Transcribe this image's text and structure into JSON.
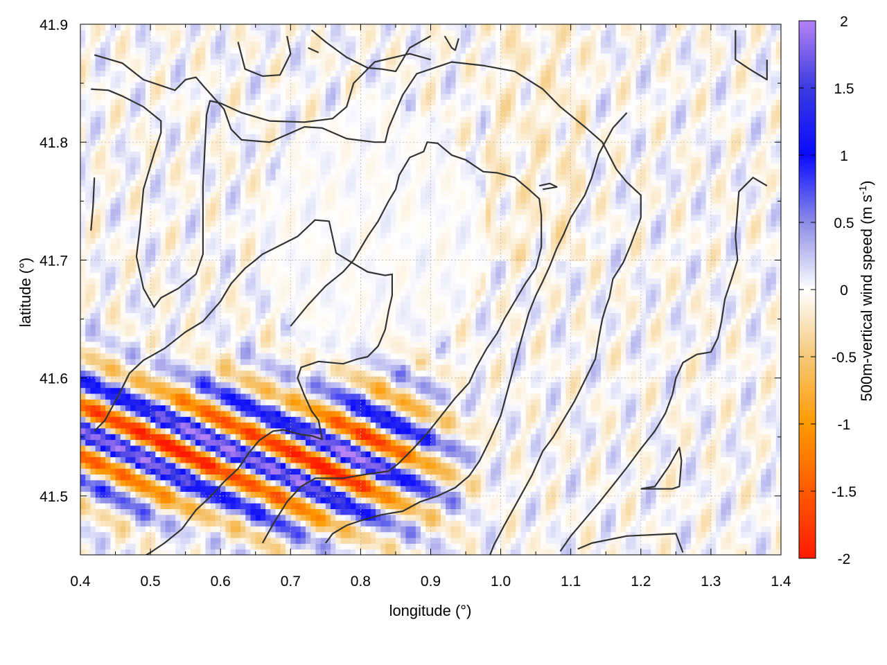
{
  "chart_data": {
    "type": "heatmap",
    "xlabel": "longitude (°)",
    "ylabel": "latitude (°)",
    "colorbar_label": "500m-vertical wind speed (m s",
    "colorbar_label_sup": "-1",
    "colorbar_label_end": ")",
    "xlim": [
      0.4,
      1.4
    ],
    "ylim": [
      41.45,
      41.9
    ],
    "clim": [
      -2,
      2
    ],
    "x_ticks": [
      0.4,
      0.5,
      0.6,
      0.7,
      0.8,
      0.9,
      1.0,
      1.1,
      1.2,
      1.3,
      1.4
    ],
    "x_tick_labels": [
      "0.4",
      "0.5",
      "0.6",
      "0.7",
      "0.8",
      "0.9",
      "1.0",
      "1.1",
      "1.2",
      "1.3",
      "1.4"
    ],
    "y_ticks": [
      41.5,
      41.6,
      41.7,
      41.8,
      41.9
    ],
    "y_tick_labels": [
      "41.5",
      "41.6",
      "41.7",
      "41.8",
      "41.9"
    ],
    "colorbar_ticks": [
      2,
      1.5,
      1,
      0.5,
      0,
      -0.5,
      -1,
      -1.5,
      -2
    ],
    "colorbar_tick_labels": [
      "2",
      "1.5",
      "1",
      "0.5",
      "0",
      "-0.5",
      "-1",
      "-1.5",
      "-2"
    ],
    "grid": true,
    "colormap": [
      {
        "value": -2,
        "color": "#ff1a00"
      },
      {
        "value": -1.5,
        "color": "#ff5a00"
      },
      {
        "value": -1,
        "color": "#ff9a00"
      },
      {
        "value": -0.5,
        "color": "#f5c878"
      },
      {
        "value": 0,
        "color": "#ffffff"
      },
      {
        "value": 0.5,
        "color": "#8c8ce6"
      },
      {
        "value": 1,
        "color": "#0a0aff"
      },
      {
        "value": 1.5,
        "color": "#3a3ae0"
      },
      {
        "value": 2,
        "color": "#b482f5"
      }
    ],
    "wave_band": {
      "description": "strong alternating updraft/downdraft wave train",
      "amplitude": 2.0
    },
    "contours": [
      {
        "name": "contour-a",
        "points": [
          [
            0.42,
            41.874
          ],
          [
            0.46,
            41.867
          ],
          [
            0.49,
            41.853
          ],
          [
            0.535,
            41.844
          ],
          [
            0.55,
            41.853
          ],
          [
            0.565,
            41.855
          ],
          [
            0.575,
            41.848
          ],
          [
            0.59,
            41.838
          ],
          [
            0.605,
            41.828
          ],
          [
            0.615,
            41.811
          ],
          [
            0.63,
            41.802
          ],
          [
            0.67,
            41.8
          ],
          [
            0.72,
            41.813
          ],
          [
            0.745,
            41.812
          ],
          [
            0.78,
            41.803
          ],
          [
            0.82,
            41.8
          ],
          [
            0.835,
            41.8
          ],
          [
            0.84,
            41.812
          ],
          [
            0.86,
            41.84
          ],
          [
            0.88,
            41.858
          ],
          [
            0.93,
            41.868
          ],
          [
            0.975,
            41.865
          ],
          [
            1.02,
            41.86
          ],
          [
            1.06,
            41.845
          ],
          [
            1.085,
            41.83
          ],
          [
            1.12,
            41.813
          ],
          [
            1.145,
            41.8
          ],
          [
            1.165,
            41.777
          ],
          [
            1.18,
            41.766
          ],
          [
            1.2,
            41.755
          ],
          [
            1.2,
            41.736
          ],
          [
            1.185,
            41.712
          ],
          [
            1.175,
            41.698
          ],
          [
            1.16,
            41.684
          ],
          [
            1.155,
            41.668
          ],
          [
            1.15,
            41.66
          ],
          [
            1.145,
            41.65
          ],
          [
            1.14,
            41.634
          ],
          [
            1.135,
            41.616
          ],
          [
            1.12,
            41.598
          ],
          [
            1.105,
            41.58
          ],
          [
            1.09,
            41.565
          ],
          [
            1.075,
            41.55
          ],
          [
            1.06,
            41.538
          ],
          [
            1.045,
            41.518
          ],
          [
            1.02,
            41.491
          ],
          [
            1.005,
            41.475
          ],
          [
            0.99,
            41.458
          ],
          [
            0.975,
            41.435
          ]
        ]
      },
      {
        "name": "contour-b",
        "points": [
          [
            0.415,
            41.845
          ],
          [
            0.44,
            41.844
          ],
          [
            0.46,
            41.839
          ],
          [
            0.49,
            41.83
          ],
          [
            0.515,
            41.818
          ],
          [
            0.515,
            41.808
          ],
          [
            0.505,
            41.79
          ],
          [
            0.49,
            41.76
          ],
          [
            0.485,
            41.727
          ],
          [
            0.48,
            41.703
          ],
          [
            0.49,
            41.676
          ],
          [
            0.505,
            41.66
          ],
          [
            0.515,
            41.668
          ],
          [
            0.54,
            41.676
          ],
          [
            0.565,
            41.688
          ],
          [
            0.575,
            41.705
          ],
          [
            0.575,
            41.763
          ],
          [
            0.58,
            41.823
          ],
          [
            0.585,
            41.835
          ],
          [
            0.6,
            41.833
          ],
          [
            0.63,
            41.825
          ],
          [
            0.67,
            41.818
          ],
          [
            0.72,
            41.817
          ],
          [
            0.76,
            41.82
          ],
          [
            0.78,
            41.83
          ],
          [
            0.79,
            41.85
          ],
          [
            0.82,
            41.868
          ],
          [
            0.87,
            41.875
          ],
          [
            0.9,
            41.87
          ]
        ]
      },
      {
        "name": "contour-c",
        "points": [
          [
            0.42,
            41.555
          ],
          [
            0.435,
            41.564
          ],
          [
            0.455,
            41.586
          ],
          [
            0.47,
            41.604
          ],
          [
            0.49,
            41.615
          ],
          [
            0.52,
            41.625
          ],
          [
            0.55,
            41.639
          ],
          [
            0.575,
            41.648
          ],
          [
            0.6,
            41.665
          ],
          [
            0.615,
            41.68
          ],
          [
            0.635,
            41.693
          ],
          [
            0.65,
            41.7
          ],
          [
            0.66,
            41.705
          ],
          [
            0.69,
            41.714
          ],
          [
            0.71,
            41.72
          ],
          [
            0.735,
            41.734
          ],
          [
            0.755,
            41.733
          ],
          [
            0.765,
            41.706
          ],
          [
            0.79,
            41.697
          ],
          [
            0.81,
            41.69
          ],
          [
            0.835,
            41.687
          ],
          [
            0.845,
            41.688
          ],
          [
            0.845,
            41.67
          ],
          [
            0.84,
            41.657
          ],
          [
            0.835,
            41.641
          ],
          [
            0.825,
            41.627
          ],
          [
            0.81,
            41.618
          ],
          [
            0.795,
            41.616
          ],
          [
            0.775,
            41.612
          ],
          [
            0.74,
            41.614
          ],
          [
            0.715,
            41.609
          ],
          [
            0.71,
            41.6
          ],
          [
            0.72,
            41.585
          ],
          [
            0.73,
            41.572
          ],
          [
            0.74,
            41.564
          ],
          [
            0.745,
            41.548
          ],
          [
            0.73,
            41.551
          ],
          [
            0.715,
            41.552
          ],
          [
            0.69,
            41.556
          ],
          [
            0.675,
            41.555
          ],
          [
            0.655,
            41.547
          ],
          [
            0.64,
            41.536
          ],
          [
            0.625,
            41.523
          ],
          [
            0.605,
            41.512
          ],
          [
            0.585,
            41.499
          ],
          [
            0.565,
            41.488
          ],
          [
            0.545,
            41.472
          ],
          [
            0.52,
            41.46
          ],
          [
            0.5,
            41.452
          ],
          [
            0.48,
            41.445
          ]
        ]
      },
      {
        "name": "contour-d",
        "points": [
          [
            0.66,
            41.46
          ],
          [
            0.675,
            41.476
          ],
          [
            0.695,
            41.495
          ],
          [
            0.715,
            41.508
          ],
          [
            0.735,
            41.515
          ],
          [
            0.775,
            41.515
          ],
          [
            0.805,
            41.518
          ],
          [
            0.84,
            41.521
          ],
          [
            0.855,
            41.528
          ],
          [
            0.875,
            41.54
          ],
          [
            0.895,
            41.553
          ],
          [
            0.915,
            41.568
          ],
          [
            0.935,
            41.583
          ],
          [
            0.955,
            41.596
          ],
          [
            0.965,
            41.609
          ],
          [
            0.98,
            41.625
          ],
          [
            0.995,
            41.638
          ],
          [
            1.005,
            41.65
          ],
          [
            1.025,
            41.67
          ],
          [
            1.035,
            41.68
          ],
          [
            1.05,
            41.693
          ],
          [
            1.058,
            41.711
          ],
          [
            1.058,
            41.738
          ],
          [
            1.055,
            41.752
          ],
          [
            1.04,
            41.76
          ],
          [
            1.02,
            41.77
          ],
          [
            0.995,
            41.774
          ],
          [
            0.975,
            41.775
          ],
          [
            0.95,
            41.785
          ],
          [
            0.93,
            41.789
          ],
          [
            0.91,
            41.799
          ],
          [
            0.895,
            41.8
          ],
          [
            0.89,
            41.792
          ],
          [
            0.87,
            41.787
          ],
          [
            0.855,
            41.772
          ],
          [
            0.85,
            41.76
          ],
          [
            0.84,
            41.75
          ],
          [
            0.825,
            41.733
          ],
          [
            0.81,
            41.72
          ],
          [
            0.79,
            41.7
          ],
          [
            0.775,
            41.69
          ],
          [
            0.75,
            41.678
          ],
          [
            0.725,
            41.662
          ],
          [
            0.7,
            41.644
          ]
        ]
      },
      {
        "name": "contour-e",
        "points": [
          [
            0.75,
            41.46
          ],
          [
            0.76,
            41.468
          ],
          [
            0.78,
            41.475
          ],
          [
            0.8,
            41.479
          ],
          [
            0.83,
            41.484
          ],
          [
            0.86,
            41.487
          ],
          [
            0.885,
            41.495
          ],
          [
            0.91,
            41.5
          ],
          [
            0.935,
            41.507
          ],
          [
            0.955,
            41.517
          ],
          [
            0.97,
            41.53
          ],
          [
            0.985,
            41.548
          ],
          [
            1.0,
            41.568
          ],
          [
            1.01,
            41.59
          ],
          [
            1.02,
            41.612
          ],
          [
            1.03,
            41.634
          ],
          [
            1.04,
            41.655
          ],
          [
            1.05,
            41.67
          ],
          [
            1.06,
            41.682
          ],
          [
            1.07,
            41.695
          ],
          [
            1.08,
            41.71
          ],
          [
            1.09,
            41.722
          ],
          [
            1.1,
            41.736
          ],
          [
            1.12,
            41.755
          ],
          [
            1.13,
            41.77
          ],
          [
            1.14,
            41.79
          ],
          [
            1.16,
            41.812
          ],
          [
            1.18,
            41.825
          ]
        ]
      },
      {
        "name": "contour-f",
        "points": [
          [
            1.38,
            41.763
          ],
          [
            1.36,
            41.77
          ],
          [
            1.34,
            41.758
          ],
          [
            1.335,
            41.72
          ],
          [
            1.338,
            41.7
          ],
          [
            1.33,
            41.685
          ],
          [
            1.32,
            41.667
          ],
          [
            1.315,
            41.648
          ],
          [
            1.31,
            41.634
          ],
          [
            1.3,
            41.622
          ],
          [
            1.28,
            41.62
          ],
          [
            1.26,
            41.613
          ],
          [
            1.25,
            41.6
          ],
          [
            1.245,
            41.586
          ],
          [
            1.235,
            41.57
          ],
          [
            1.22,
            41.555
          ],
          [
            1.2,
            41.54
          ],
          [
            1.18,
            41.524
          ],
          [
            1.16,
            41.509
          ],
          [
            1.14,
            41.494
          ],
          [
            1.12,
            41.48
          ],
          [
            1.1,
            41.466
          ],
          [
            1.085,
            41.453
          ]
        ]
      },
      {
        "name": "contour-g",
        "points": [
          [
            1.2,
            41.506
          ],
          [
            1.22,
            41.508
          ],
          [
            1.24,
            41.525
          ],
          [
            1.255,
            41.541
          ],
          [
            1.258,
            41.53
          ],
          [
            1.255,
            41.508
          ],
          [
            1.245,
            41.506
          ],
          [
            1.2,
            41.506
          ]
        ]
      },
      {
        "name": "contour-h",
        "points": [
          [
            1.335,
            41.895
          ],
          [
            1.335,
            41.87
          ],
          [
            1.355,
            41.862
          ],
          [
            1.38,
            41.853
          ],
          [
            1.38,
            41.87
          ]
        ]
      },
      {
        "name": "contour-i",
        "points": [
          [
            1.11,
            41.455
          ],
          [
            1.13,
            41.46
          ],
          [
            1.18,
            41.466
          ],
          [
            1.25,
            41.468
          ],
          [
            1.26,
            41.452
          ]
        ]
      },
      {
        "name": "contour-j",
        "points": [
          [
            0.625,
            41.885
          ],
          [
            0.635,
            41.862
          ],
          [
            0.66,
            41.856
          ],
          [
            0.685,
            41.857
          ],
          [
            0.7,
            41.875
          ],
          [
            0.695,
            41.89
          ]
        ]
      },
      {
        "name": "contour-k",
        "points": [
          [
            0.415,
            41.725
          ],
          [
            0.418,
            41.745
          ],
          [
            0.42,
            41.77
          ]
        ]
      },
      {
        "name": "contour-l",
        "points": [
          [
            1.055,
            41.763
          ],
          [
            1.07,
            41.765
          ],
          [
            1.08,
            41.762
          ],
          [
            1.06,
            41.76
          ]
        ]
      },
      {
        "name": "contour-m",
        "points": [
          [
            0.73,
            41.895
          ],
          [
            0.75,
            41.885
          ],
          [
            0.78,
            41.872
          ],
          [
            0.81,
            41.863
          ],
          [
            0.83,
            41.862
          ],
          [
            0.85,
            41.86
          ],
          [
            0.87,
            41.88
          ],
          [
            0.9,
            41.89
          ]
        ]
      },
      {
        "name": "contour-n",
        "points": [
          [
            0.92,
            41.89
          ],
          [
            0.93,
            41.88
          ],
          [
            0.935,
            41.878
          ],
          [
            0.94,
            41.888
          ]
        ]
      },
      {
        "name": "contour-o",
        "points": [
          [
            0.725,
            41.88
          ],
          [
            0.74,
            41.876
          ]
        ]
      }
    ]
  }
}
